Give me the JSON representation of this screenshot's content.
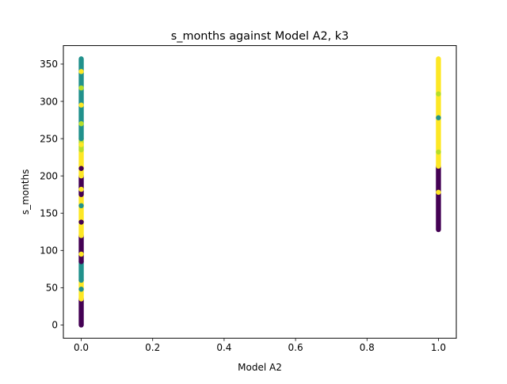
{
  "chart_data": {
    "type": "scatter",
    "title": "s_months against Model A2, k3",
    "xlabel": "Model A2",
    "ylabel": "s_months",
    "xlim": [
      -0.05,
      1.05
    ],
    "ylim": [
      -17.8,
      374.8
    ],
    "xticks": [
      "0.0",
      "0.2",
      "0.4",
      "0.6",
      "0.8",
      "1.0"
    ],
    "yticks": [
      "0",
      "50",
      "100",
      "150",
      "200",
      "250",
      "300",
      "350"
    ],
    "grid": false,
    "legend": "none",
    "colors": {
      "cluster_0": "#440154",
      "cluster_1": "#21918c",
      "cluster_2": "#fde725",
      "accent": "#b5de2b"
    },
    "series": [
      {
        "x": 0.0,
        "segments": [
          {
            "from": 0,
            "to": 35,
            "color": "#440154"
          },
          {
            "from": 35,
            "to": 60,
            "color": "#fde725"
          },
          {
            "from": 60,
            "to": 85,
            "color": "#21918c"
          },
          {
            "from": 85,
            "to": 120,
            "color": "#440154"
          },
          {
            "from": 120,
            "to": 175,
            "color": "#fde725"
          },
          {
            "from": 175,
            "to": 200,
            "color": "#440154"
          },
          {
            "from": 200,
            "to": 235,
            "color": "#fde725"
          },
          {
            "from": 235,
            "to": 250,
            "color": "#b5de2b"
          },
          {
            "from": 250,
            "to": 357,
            "color": "#21918c"
          }
        ],
        "accents": [
          {
            "y": 48,
            "color": "#21918c"
          },
          {
            "y": 95,
            "color": "#fde725"
          },
          {
            "y": 138,
            "color": "#440154"
          },
          {
            "y": 160,
            "color": "#21918c"
          },
          {
            "y": 182,
            "color": "#fde725"
          },
          {
            "y": 210,
            "color": "#440154"
          },
          {
            "y": 242,
            "color": "#fde725"
          },
          {
            "y": 270,
            "color": "#b5de2b"
          },
          {
            "y": 295,
            "color": "#fde725"
          },
          {
            "y": 318,
            "color": "#b5de2b"
          },
          {
            "y": 340,
            "color": "#fde725"
          }
        ]
      },
      {
        "x": 1.0,
        "segments": [
          {
            "from": 128,
            "to": 213,
            "color": "#440154"
          },
          {
            "from": 213,
            "to": 357,
            "color": "#fde725"
          }
        ],
        "accents": [
          {
            "y": 178,
            "color": "#fde725"
          },
          {
            "y": 232,
            "color": "#b5de2b"
          },
          {
            "y": 278,
            "color": "#21918c"
          },
          {
            "y": 310,
            "color": "#b5de2b"
          }
        ]
      }
    ]
  }
}
